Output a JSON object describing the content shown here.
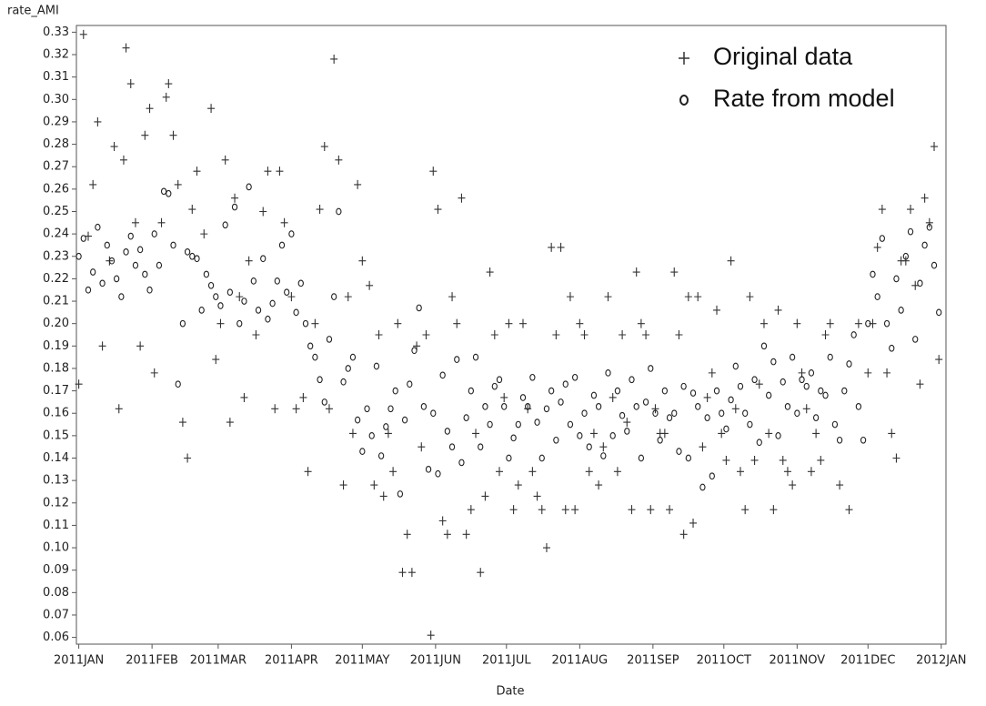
{
  "chart_data": {
    "type": "scatter",
    "x_label": "Date",
    "y_label": "rate_AMI",
    "legend": "upper right",
    "grid": false,
    "xlim": [
      -1,
      367
    ],
    "ylim": [
      0.057,
      0.333
    ],
    "xticks": [
      {
        "value": 0,
        "label": "2011JAN"
      },
      {
        "value": 31,
        "label": "2011FEB"
      },
      {
        "value": 59,
        "label": "2011MAR"
      },
      {
        "value": 90,
        "label": "2011APR"
      },
      {
        "value": 120,
        "label": "2011MAY"
      },
      {
        "value": 151,
        "label": "2011JUN"
      },
      {
        "value": 181,
        "label": "2011JUL"
      },
      {
        "value": 212,
        "label": "2011AUG"
      },
      {
        "value": 243,
        "label": "2011SEP"
      },
      {
        "value": 273,
        "label": "2011OCT"
      },
      {
        "value": 304,
        "label": "2011NOV"
      },
      {
        "value": 334,
        "label": "2011DEC"
      },
      {
        "value": 365,
        "label": "2012JAN"
      }
    ],
    "yticks": [
      0.06,
      0.07,
      0.08,
      0.09,
      {
        "value": 0.1,
        "label": "0.10"
      },
      0.11,
      0.12,
      0.13,
      0.14,
      0.15,
      0.16,
      0.17,
      0.18,
      0.19,
      {
        "value": 0.2,
        "label": "0.20"
      },
      0.21,
      0.22,
      0.23,
      0.24,
      0.25,
      0.26,
      0.27,
      0.28,
      0.29,
      {
        "value": 0.3,
        "label": "0.30"
      },
      0.31,
      0.32,
      0.33
    ],
    "series": [
      {
        "name": "Original data",
        "marker": "plus",
        "color": "#333333",
        "x": [
          0,
          2,
          4,
          6,
          8,
          10,
          13,
          15,
          17,
          19,
          20,
          22,
          24,
          26,
          28,
          30,
          32,
          35,
          37,
          38,
          40,
          42,
          44,
          46,
          48,
          50,
          53,
          56,
          58,
          60,
          62,
          64,
          66,
          68,
          70,
          72,
          75,
          78,
          80,
          83,
          85,
          87,
          90,
          92,
          95,
          97,
          100,
          102,
          104,
          106,
          108,
          110,
          112,
          114,
          116,
          118,
          120,
          123,
          125,
          127,
          129,
          131,
          133,
          135,
          137,
          139,
          141,
          143,
          145,
          147,
          149,
          150,
          152,
          154,
          156,
          158,
          160,
          162,
          164,
          166,
          168,
          170,
          172,
          174,
          176,
          178,
          180,
          182,
          184,
          186,
          188,
          190,
          192,
          194,
          196,
          198,
          200,
          202,
          204,
          206,
          208,
          210,
          212,
          214,
          216,
          218,
          220,
          222,
          224,
          226,
          228,
          230,
          232,
          234,
          236,
          238,
          240,
          242,
          244,
          246,
          248,
          250,
          252,
          254,
          256,
          258,
          260,
          262,
          264,
          266,
          268,
          270,
          272,
          274,
          276,
          278,
          280,
          282,
          284,
          286,
          288,
          290,
          292,
          294,
          296,
          298,
          300,
          302,
          304,
          306,
          308,
          310,
          312,
          314,
          316,
          318,
          322,
          326,
          330,
          334,
          336,
          338,
          340,
          342,
          344,
          346,
          348,
          350,
          352,
          354,
          356,
          358,
          360,
          362,
          364
        ],
        "values": [
          0.173,
          0.329,
          0.239,
          0.262,
          0.29,
          0.19,
          0.228,
          0.279,
          0.162,
          0.273,
          0.323,
          0.307,
          0.245,
          0.19,
          0.284,
          0.296,
          0.178,
          0.245,
          0.301,
          0.307,
          0.284,
          0.262,
          0.156,
          0.14,
          0.251,
          0.268,
          0.24,
          0.296,
          0.184,
          0.2,
          0.273,
          0.156,
          0.256,
          0.212,
          0.167,
          0.228,
          0.195,
          0.25,
          0.268,
          0.162,
          0.268,
          0.245,
          0.212,
          0.162,
          0.167,
          0.134,
          0.2,
          0.251,
          0.279,
          0.162,
          0.318,
          0.273,
          0.128,
          0.212,
          0.151,
          0.262,
          0.228,
          0.217,
          0.128,
          0.195,
          0.123,
          0.151,
          0.134,
          0.2,
          0.089,
          0.106,
          0.089,
          0.19,
          0.145,
          0.195,
          0.061,
          0.268,
          0.251,
          0.112,
          0.106,
          0.212,
          0.2,
          0.256,
          0.106,
          0.117,
          0.151,
          0.089,
          0.123,
          0.223,
          0.195,
          0.134,
          0.167,
          0.2,
          0.117,
          0.128,
          0.2,
          0.162,
          0.134,
          0.123,
          0.117,
          0.1,
          0.234,
          0.195,
          0.234,
          0.117,
          0.212,
          0.117,
          0.2,
          0.195,
          0.134,
          0.151,
          0.128,
          0.145,
          0.212,
          0.167,
          0.134,
          0.195,
          0.156,
          0.117,
          0.223,
          0.2,
          0.195,
          0.117,
          0.162,
          0.151,
          0.151,
          0.117,
          0.223,
          0.195,
          0.106,
          0.212,
          0.111,
          0.212,
          0.145,
          0.167,
          0.178,
          0.206,
          0.151,
          0.139,
          0.228,
          0.162,
          0.134,
          0.117,
          0.212,
          0.139,
          0.173,
          0.2,
          0.151,
          0.117,
          0.206,
          0.139,
          0.134,
          0.128,
          0.2,
          0.178,
          0.162,
          0.134,
          0.151,
          0.139,
          0.195,
          0.2,
          0.128,
          0.117,
          0.2,
          0.178,
          0.2,
          0.234,
          0.251,
          0.178,
          0.151,
          0.14,
          0.228,
          0.228,
          0.251,
          0.217,
          0.173,
          0.256,
          0.245,
          0.279,
          0.184
        ]
      },
      {
        "name": "Rate from model",
        "marker": "circle",
        "color": "#222222",
        "x": [
          0,
          2,
          4,
          6,
          8,
          10,
          12,
          14,
          16,
          18,
          20,
          22,
          24,
          26,
          28,
          30,
          32,
          34,
          36,
          38,
          40,
          42,
          44,
          46,
          48,
          50,
          52,
          54,
          56,
          58,
          60,
          62,
          64,
          66,
          68,
          70,
          72,
          74,
          76,
          78,
          80,
          82,
          84,
          86,
          88,
          90,
          92,
          94,
          96,
          98,
          100,
          102,
          104,
          106,
          108,
          110,
          112,
          114,
          116,
          118,
          120,
          122,
          124,
          126,
          128,
          130,
          132,
          134,
          136,
          138,
          140,
          142,
          144,
          146,
          148,
          150,
          152,
          154,
          156,
          158,
          160,
          162,
          164,
          166,
          168,
          170,
          172,
          174,
          176,
          178,
          180,
          182,
          184,
          186,
          188,
          190,
          192,
          194,
          196,
          198,
          200,
          202,
          204,
          206,
          208,
          210,
          212,
          214,
          216,
          218,
          220,
          222,
          224,
          226,
          228,
          230,
          232,
          234,
          236,
          238,
          240,
          242,
          244,
          246,
          248,
          250,
          252,
          254,
          256,
          258,
          260,
          262,
          264,
          266,
          268,
          270,
          272,
          274,
          276,
          278,
          280,
          282,
          284,
          286,
          288,
          290,
          292,
          294,
          296,
          298,
          300,
          302,
          304,
          306,
          308,
          310,
          312,
          314,
          316,
          318,
          320,
          322,
          324,
          326,
          328,
          330,
          332,
          334,
          336,
          338,
          340,
          342,
          344,
          346,
          348,
          350,
          352,
          354,
          356,
          358,
          360,
          362,
          364
        ],
        "values": [
          0.23,
          0.238,
          0.215,
          0.223,
          0.243,
          0.218,
          0.235,
          0.228,
          0.22,
          0.212,
          0.232,
          0.239,
          0.226,
          0.233,
          0.222,
          0.215,
          0.24,
          0.226,
          0.259,
          0.258,
          0.235,
          0.173,
          0.2,
          0.232,
          0.23,
          0.229,
          0.206,
          0.222,
          0.217,
          0.212,
          0.208,
          0.244,
          0.214,
          0.252,
          0.2,
          0.21,
          0.261,
          0.219,
          0.206,
          0.229,
          0.202,
          0.209,
          0.219,
          0.235,
          0.214,
          0.24,
          0.205,
          0.218,
          0.2,
          0.19,
          0.185,
          0.175,
          0.165,
          0.193,
          0.212,
          0.25,
          0.174,
          0.18,
          0.185,
          0.157,
          0.143,
          0.162,
          0.15,
          0.181,
          0.141,
          0.154,
          0.162,
          0.17,
          0.124,
          0.157,
          0.173,
          0.188,
          0.207,
          0.163,
          0.135,
          0.16,
          0.133,
          0.177,
          0.152,
          0.145,
          0.184,
          0.138,
          0.158,
          0.17,
          0.185,
          0.145,
          0.163,
          0.155,
          0.172,
          0.175,
          0.163,
          0.14,
          0.149,
          0.155,
          0.167,
          0.163,
          0.176,
          0.156,
          0.14,
          0.162,
          0.17,
          0.148,
          0.165,
          0.173,
          0.155,
          0.176,
          0.15,
          0.16,
          0.145,
          0.168,
          0.163,
          0.141,
          0.178,
          0.15,
          0.17,
          0.159,
          0.152,
          0.175,
          0.163,
          0.14,
          0.165,
          0.18,
          0.16,
          0.148,
          0.17,
          0.158,
          0.16,
          0.143,
          0.172,
          0.14,
          0.169,
          0.163,
          0.127,
          0.158,
          0.132,
          0.17,
          0.16,
          0.153,
          0.166,
          0.181,
          0.172,
          0.16,
          0.155,
          0.175,
          0.147,
          0.19,
          0.168,
          0.183,
          0.15,
          0.174,
          0.163,
          0.185,
          0.16,
          0.175,
          0.172,
          0.178,
          0.158,
          0.17,
          0.168,
          0.185,
          0.155,
          0.148,
          0.17,
          0.182,
          0.195,
          0.163,
          0.148,
          0.2,
          0.222,
          0.212,
          0.238,
          0.2,
          0.189,
          0.22,
          0.206,
          0.23,
          0.241,
          0.193,
          0.218,
          0.235,
          0.243,
          0.226,
          0.205
        ]
      }
    ]
  }
}
